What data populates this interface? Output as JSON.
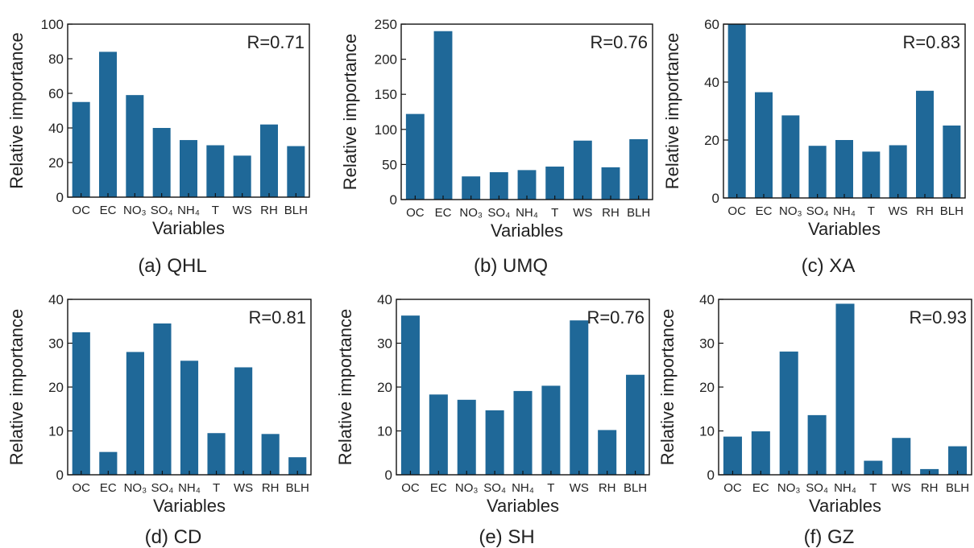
{
  "bar_color": "#1f6898",
  "chart_data": [
    {
      "type": "bar",
      "caption": "(a) QHL",
      "r_label": "R=0.71",
      "xlabel": "Variables",
      "ylabel": "Relative importance",
      "categories": [
        "OC",
        "EC",
        "NO₃",
        "SO₄",
        "NH₄",
        "T",
        "WS",
        "RH",
        "BLH"
      ],
      "values": [
        55,
        84,
        59,
        40,
        33,
        30,
        24,
        42,
        29.5
      ],
      "ylim": [
        0,
        100
      ],
      "yticks": [
        0,
        20,
        40,
        60,
        80,
        100
      ],
      "grid": false
    },
    {
      "type": "bar",
      "caption": "(b) UMQ",
      "r_label": "R=0.76",
      "xlabel": "Variables",
      "ylabel": "Relative importance",
      "categories": [
        "OC",
        "EC",
        "NO₃",
        "SO₄",
        "NH₄",
        "T",
        "WS",
        "RH",
        "BLH"
      ],
      "values": [
        122,
        240,
        33,
        39,
        42,
        47,
        84,
        46,
        86
      ],
      "ylim": [
        0,
        250
      ],
      "yticks": [
        0,
        50,
        100,
        150,
        200,
        250
      ],
      "grid": false
    },
    {
      "type": "bar",
      "caption": "(c) XA",
      "r_label": "R=0.83",
      "xlabel": "Variables",
      "ylabel": "Relative importance",
      "categories": [
        "OC",
        "EC",
        "NO₃",
        "SO₄",
        "NH₄",
        "T",
        "WS",
        "RH",
        "BLH"
      ],
      "values": [
        60,
        36.5,
        28.5,
        18,
        20,
        16,
        18.2,
        37,
        25
      ],
      "ylim": [
        0,
        60
      ],
      "yticks": [
        0,
        20,
        40,
        60
      ],
      "grid": false
    },
    {
      "type": "bar",
      "caption": "(d) CD",
      "r_label": "R=0.81",
      "xlabel": "Variables",
      "ylabel": "Relative importance",
      "categories": [
        "OC",
        "EC",
        "NO₃",
        "SO₄",
        "NH₄",
        "T",
        "WS",
        "RH",
        "BLH"
      ],
      "values": [
        32.5,
        5.2,
        28,
        34.5,
        26,
        9.5,
        24.5,
        9.3,
        4
      ],
      "ylim": [
        0,
        40
      ],
      "yticks": [
        0,
        10,
        20,
        30,
        40
      ],
      "grid": false
    },
    {
      "type": "bar",
      "caption": "(e) SH",
      "r_label": "R=0.76",
      "xlabel": "Variables",
      "ylabel": "Relative importance",
      "categories": [
        "OC",
        "EC",
        "NO₃",
        "SO₄",
        "NH₄",
        "T",
        "WS",
        "RH",
        "BLH"
      ],
      "values": [
        36.3,
        18.3,
        17.1,
        14.7,
        19.1,
        20.3,
        35.2,
        10.2,
        22.8
      ],
      "ylim": [
        0,
        40
      ],
      "yticks": [
        0,
        10,
        20,
        30,
        40
      ],
      "grid": false
    },
    {
      "type": "bar",
      "caption": "(f) GZ",
      "r_label": "R=0.93",
      "xlabel": "Variables",
      "ylabel": "Relative importance",
      "categories": [
        "OC",
        "EC",
        "NO₃",
        "SO₄",
        "NH₄",
        "T",
        "WS",
        "RH",
        "BLH"
      ],
      "values": [
        8.7,
        9.9,
        28.1,
        13.6,
        39,
        3.2,
        8.4,
        1.3,
        6.5
      ],
      "ylim": [
        0,
        40
      ],
      "yticks": [
        0,
        10,
        20,
        30,
        40
      ],
      "grid": false
    }
  ]
}
